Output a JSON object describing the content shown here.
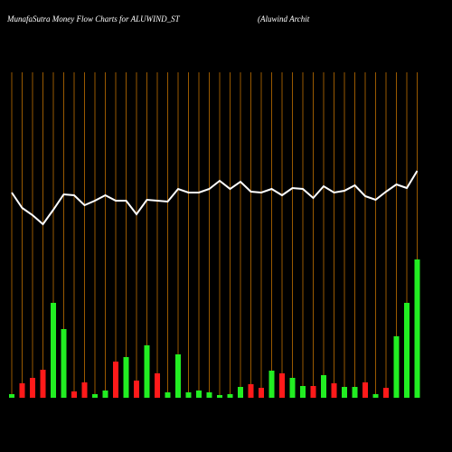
{
  "chart_data": {
    "type": "money-flow",
    "title": "MunafaSutra  Money Flow  Charts for ALUWIND_ST",
    "subtitle": "(Aluwind Archit",
    "categories": [
      null,
      null,
      null,
      null,
      null,
      null,
      null,
      null,
      null,
      null,
      null,
      null,
      null,
      null,
      null,
      null,
      null,
      null,
      null,
      null,
      null,
      null,
      null,
      null,
      null,
      null,
      null,
      null,
      null,
      null,
      null,
      null,
      null,
      null,
      null,
      null,
      null,
      null,
      null,
      null
    ],
    "ylim": [
      0,
      200
    ],
    "grid_color": "#c07000",
    "series": [
      {
        "kind": "bar",
        "values": [
          2,
          8,
          11,
          15.5,
          52.5,
          38,
          3.5,
          8.5,
          2,
          4,
          20,
          22.5,
          9.5,
          29,
          13.5,
          3,
          24,
          3,
          4,
          3,
          1.5,
          2,
          6,
          7.5,
          5.5,
          15,
          13.5,
          11,
          6.5,
          6.5,
          12.5,
          8,
          6,
          6,
          8.5,
          2,
          5.5,
          34,
          52.5,
          76.5
        ],
        "colors": [
          "#22ee22",
          "#ff1a1a",
          "#ff1a1a",
          "#ff1a1a",
          "#22ee22",
          "#22ee22",
          "#ff1a1a",
          "#ff1a1a",
          "#22ee22",
          "#22ee22",
          "#ff1a1a",
          "#22ee22",
          "#ff1a1a",
          "#22ee22",
          "#ff1a1a",
          "#22ee22",
          "#22ee22",
          "#22ee22",
          "#22ee22",
          "#22ee22",
          "#22ee22",
          "#22ee22",
          "#22ee22",
          "#ff1a1a",
          "#ff1a1a",
          "#22ee22",
          "#ff1a1a",
          "#22ee22",
          "#22ee22",
          "#ff1a1a",
          "#22ee22",
          "#ff1a1a",
          "#22ee22",
          "#22ee22",
          "#ff1a1a",
          "#22ee22",
          "#ff1a1a",
          "#22ee22",
          "#22ee22",
          "#22ee22"
        ]
      },
      {
        "kind": "line",
        "color": "#ffffff",
        "values": [
          113.5,
          105,
          101,
          96,
          104,
          112.5,
          112,
          106.5,
          109,
          112,
          109,
          109,
          101.5,
          109.5,
          109,
          108.5,
          115.5,
          113.5,
          113.5,
          115.5,
          120,
          115.5,
          119.5,
          114,
          113.5,
          115.5,
          112,
          116,
          115.5,
          110.5,
          117,
          113.5,
          114.5,
          117.5,
          111.5,
          109.5,
          114,
          118,
          116,
          125.5
        ]
      }
    ]
  }
}
